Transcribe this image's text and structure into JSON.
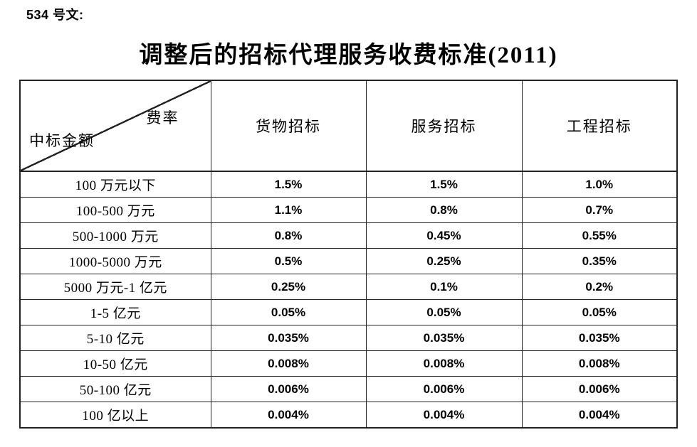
{
  "page": {
    "doc_label": "534 号文:",
    "title": "调整后的招标代理服务收费标准(2011)"
  },
  "colors": {
    "background": "#ffffff",
    "text": "#000000",
    "table_border": "#222222"
  },
  "table": {
    "corner": {
      "rate_label": "费率",
      "amount_label": "中标金额"
    },
    "columns": [
      "货物招标",
      "服务招标",
      "工程招标"
    ],
    "rows": [
      {
        "amount": "100 万元以下",
        "values": [
          "1.5%",
          "1.5%",
          "1.0%"
        ]
      },
      {
        "amount": "100-500 万元",
        "values": [
          "1.1%",
          "0.8%",
          "0.7%"
        ]
      },
      {
        "amount": "500-1000 万元",
        "values": [
          "0.8%",
          "0.45%",
          "0.55%"
        ]
      },
      {
        "amount": "1000-5000 万元",
        "values": [
          "0.5%",
          "0.25%",
          "0.35%"
        ]
      },
      {
        "amount": "5000 万元-1 亿元",
        "values": [
          "0.25%",
          "0.1%",
          "0.2%"
        ]
      },
      {
        "amount": "1-5 亿元",
        "values": [
          "0.05%",
          "0.05%",
          "0.05%"
        ]
      },
      {
        "amount": "5-10 亿元",
        "values": [
          "0.035%",
          "0.035%",
          "0.035%"
        ]
      },
      {
        "amount": "10-50 亿元",
        "values": [
          "0.008%",
          "0.008%",
          "0.008%"
        ]
      },
      {
        "amount": "50-100 亿元",
        "values": [
          "0.006%",
          "0.006%",
          "0.006%"
        ]
      },
      {
        "amount": "100 亿以上",
        "values": [
          "0.004%",
          "0.004%",
          "0.004%"
        ]
      }
    ]
  }
}
